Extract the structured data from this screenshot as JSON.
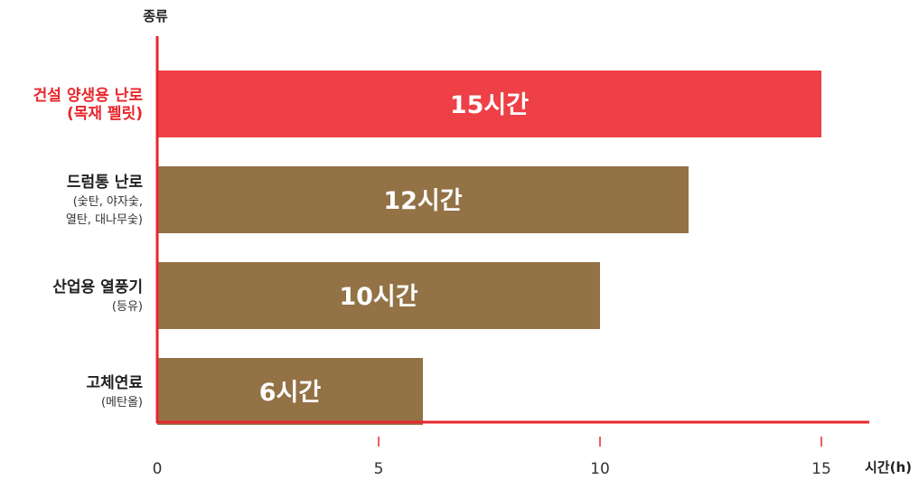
{
  "chart_data": {
    "type": "bar",
    "orientation": "horizontal",
    "ylabel": "종류",
    "xlabel": "시간(h)",
    "xlim": [
      0,
      15
    ],
    "xticks": [
      0,
      5,
      10,
      15
    ],
    "grid": false,
    "legend": "none",
    "categories": [
      {
        "name": "건설 양생용 난로",
        "detail": [
          "(목재 펠릿)"
        ],
        "highlight": true
      },
      {
        "name": "드럼통 난로",
        "detail": [
          "(숯탄, 야자숯,",
          "열탄, 대나무숯)"
        ],
        "highlight": false
      },
      {
        "name": "산업용 열풍기",
        "detail": [
          "(등유)"
        ],
        "highlight": false
      },
      {
        "name": "고체연료",
        "detail": [
          "(메탄올)"
        ],
        "highlight": false
      }
    ],
    "values": [
      15,
      12,
      10,
      6
    ],
    "data_labels": [
      "15시간",
      "12시간",
      "10시간",
      "6시간"
    ]
  },
  "colors": {
    "highlight": "#ee4046",
    "bar": "#937246",
    "axis": "#e8262c",
    "highlight_text": "#e8262c",
    "text": "#222222"
  }
}
